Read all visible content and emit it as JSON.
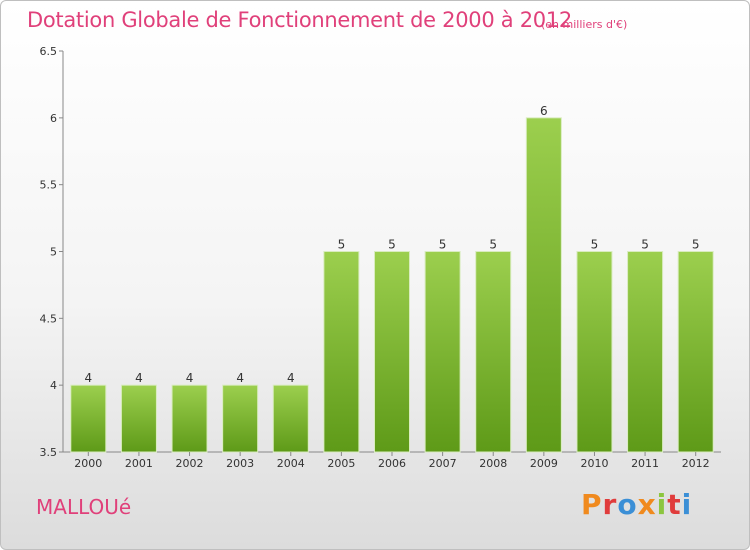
{
  "chart_data": {
    "type": "bar",
    "title": "Dotation Globale de Fonctionnement de 2000 à 2012",
    "subtitle": "(en milliers d'€)",
    "categories": [
      "2000",
      "2001",
      "2002",
      "2003",
      "2004",
      "2005",
      "2006",
      "2007",
      "2008",
      "2009",
      "2010",
      "2011",
      "2012"
    ],
    "values": [
      4,
      4,
      4,
      4,
      4,
      5,
      5,
      5,
      5,
      6,
      5,
      5,
      5
    ],
    "ylim": [
      3.5,
      6.5
    ],
    "yticks": [
      "3.5",
      "4",
      "4.5",
      "5",
      "5.5",
      "6",
      "6.5"
    ],
    "xlabel": "",
    "ylabel": "",
    "grid": false,
    "bar_color_top": "#9ccf4e",
    "bar_color_bottom": "#5e9a18"
  },
  "footer": {
    "place_name": "MALLOUé",
    "logo_text": "Proxiti"
  },
  "colors": {
    "title": "#e0407a",
    "logo": [
      "#f08a1e",
      "#e03c3c",
      "#3b8fd6",
      "#f08a1e",
      "#8cc63f",
      "#e03c3c",
      "#3b8fd6"
    ]
  }
}
